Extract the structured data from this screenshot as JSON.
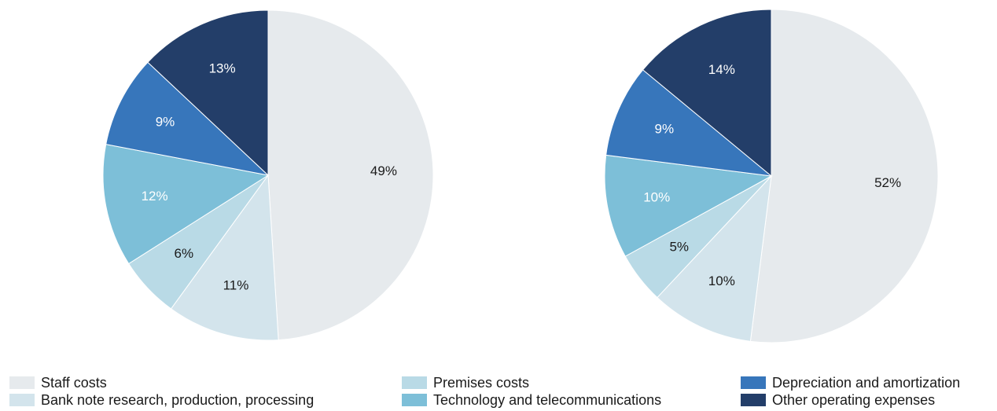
{
  "chart_data": [
    {
      "type": "pie",
      "slices": [
        {
          "label": "Staff costs",
          "value": 49,
          "display": "49%",
          "color": "#e6eaed",
          "text_color": "#1a1a1a"
        },
        {
          "label": "Bank note research, production, processing",
          "value": 11,
          "display": "11%",
          "color": "#d3e4ec",
          "text_color": "#1a1a1a"
        },
        {
          "label": "Premises costs",
          "value": 6,
          "display": "6%",
          "color": "#b9dae6",
          "text_color": "#1a1a1a"
        },
        {
          "label": "Technology and telecommunications",
          "value": 12,
          "display": "12%",
          "color": "#7dbfd8",
          "text_color": "#ffffff"
        },
        {
          "label": "Depreciation and amortization",
          "value": 9,
          "display": "9%",
          "color": "#3776bb",
          "text_color": "#ffffff"
        },
        {
          "label": "Other operating expenses",
          "value": 13,
          "display": "13%",
          "color": "#233e69",
          "text_color": "#ffffff"
        }
      ]
    },
    {
      "type": "pie",
      "slices": [
        {
          "label": "Staff costs",
          "value": 52,
          "display": "52%",
          "color": "#e6eaed",
          "text_color": "#1a1a1a"
        },
        {
          "label": "Bank note research, production, processing",
          "value": 10,
          "display": "10%",
          "color": "#d3e4ec",
          "text_color": "#1a1a1a"
        },
        {
          "label": "Premises costs",
          "value": 5,
          "display": "5%",
          "color": "#b9dae6",
          "text_color": "#1a1a1a"
        },
        {
          "label": "Technology and telecommunications",
          "value": 10,
          "display": "10%",
          "color": "#7dbfd8",
          "text_color": "#ffffff"
        },
        {
          "label": "Depreciation and amortization",
          "value": 9,
          "display": "9%",
          "color": "#3776bb",
          "text_color": "#ffffff"
        },
        {
          "label": "Other operating expenses",
          "value": 14,
          "display": "14%",
          "color": "#233e69",
          "text_color": "#ffffff"
        }
      ]
    }
  ],
  "legend": {
    "items": [
      {
        "label": "Staff costs",
        "color": "#e6eaed"
      },
      {
        "label": "Bank note research, production, processing",
        "color": "#d3e4ec"
      },
      {
        "label": "Premises costs",
        "color": "#b9dae6"
      },
      {
        "label": "Technology and telecommunications",
        "color": "#7dbfd8"
      },
      {
        "label": "Depreciation and amortization",
        "color": "#3776bb"
      },
      {
        "label": "Other operating expenses",
        "color": "#233e69"
      }
    ]
  }
}
